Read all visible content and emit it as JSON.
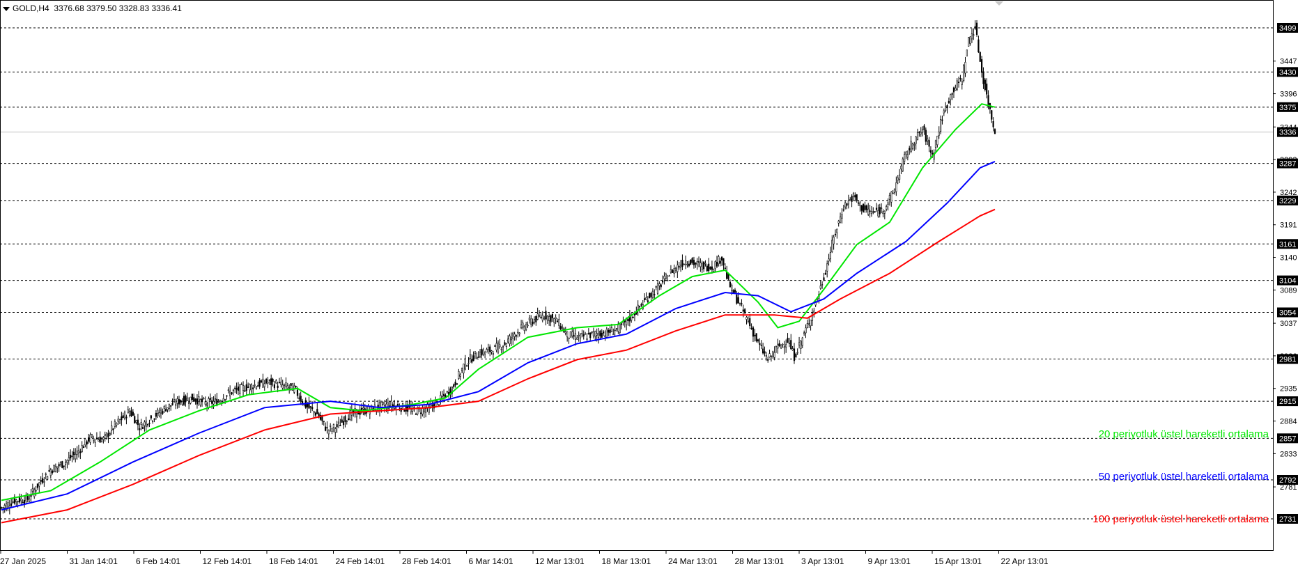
{
  "header": {
    "symbol": "GOLD,H4",
    "ohlc": "3376.68 3379.50 3328.83 3336.41"
  },
  "legend": {
    "ema20": "20 periyotluk üstel hareketli ortalama",
    "ema50": "50 periyotluk üstel hareketli ortalama",
    "ema100": "100 periyotluk üstel hareketli ortalama"
  },
  "colors": {
    "ema20": "#00e600",
    "ema50": "#0000ff",
    "ema100": "#ff0000",
    "candle": "#000000",
    "level_line": "#000000",
    "price_label_bg": "#000000"
  },
  "chart_data": {
    "type": "candlestick",
    "symbol": "GOLD",
    "timeframe": "H4",
    "ylim": [
      2720,
      3520
    ],
    "x_ticks": [
      "27 Jan 2025",
      "31 Jan 14:01",
      "6 Feb 14:01",
      "12 Feb 14:01",
      "18 Feb 14:01",
      "24 Feb 14:01",
      "28 Feb 14:01",
      "6 Mar 14:01",
      "12 Mar 13:01",
      "18 Mar 13:01",
      "24 Mar 13:01",
      "28 Mar 13:01",
      "3 Apr 13:01",
      "9 Apr 13:01",
      "15 Apr 13:01",
      "22 Apr 13:01"
    ],
    "y_ticks": [
      3447,
      3396,
      3344,
      3293,
      3242,
      3191,
      3140,
      3089,
      3037,
      2986,
      2935,
      2884,
      2833,
      2781
    ],
    "levels": [
      3499,
      3430,
      3375,
      3287,
      3229,
      3161,
      3104,
      3054,
      2981,
      2915,
      2857,
      2792,
      2731
    ],
    "current_price": 3336,
    "close_path": [
      [
        0,
        2748
      ],
      [
        8,
        2760
      ],
      [
        16,
        2762
      ],
      [
        24,
        2790
      ],
      [
        30,
        2808
      ],
      [
        38,
        2818
      ],
      [
        46,
        2835
      ],
      [
        54,
        2858
      ],
      [
        62,
        2855
      ],
      [
        70,
        2880
      ],
      [
        78,
        2900
      ],
      [
        84,
        2875
      ],
      [
        92,
        2890
      ],
      [
        100,
        2905
      ],
      [
        108,
        2915
      ],
      [
        116,
        2920
      ],
      [
        124,
        2912
      ],
      [
        132,
        2915
      ],
      [
        138,
        2928
      ],
      [
        146,
        2935
      ],
      [
        154,
        2940
      ],
      [
        162,
        2945
      ],
      [
        170,
        2940
      ],
      [
        178,
        2935
      ],
      [
        184,
        2910
      ],
      [
        192,
        2895
      ],
      [
        198,
        2870
      ],
      [
        204,
        2875
      ],
      [
        212,
        2895
      ],
      [
        220,
        2900
      ],
      [
        228,
        2905
      ],
      [
        236,
        2910
      ],
      [
        244,
        2905
      ],
      [
        252,
        2900
      ],
      [
        260,
        2905
      ],
      [
        266,
        2915
      ],
      [
        274,
        2935
      ],
      [
        282,
        2975
      ],
      [
        290,
        2990
      ],
      [
        298,
        2995
      ],
      [
        306,
        3005
      ],
      [
        314,
        3025
      ],
      [
        322,
        3040
      ],
      [
        330,
        3050
      ],
      [
        338,
        3040
      ],
      [
        344,
        3018
      ],
      [
        352,
        3015
      ],
      [
        360,
        3020
      ],
      [
        368,
        3022
      ],
      [
        376,
        3030
      ],
      [
        384,
        3050
      ],
      [
        392,
        3075
      ],
      [
        400,
        3095
      ],
      [
        408,
        3120
      ],
      [
        416,
        3135
      ],
      [
        424,
        3128
      ],
      [
        432,
        3125
      ],
      [
        438,
        3140
      ],
      [
        442,
        3100
      ],
      [
        448,
        3070
      ],
      [
        454,
        3040
      ],
      [
        460,
        3005
      ],
      [
        466,
        2980
      ],
      [
        472,
        3000
      ],
      [
        478,
        3010
      ],
      [
        482,
        2985
      ],
      [
        488,
        3020
      ],
      [
        494,
        3060
      ],
      [
        500,
        3110
      ],
      [
        506,
        3170
      ],
      [
        512,
        3220
      ],
      [
        518,
        3235
      ],
      [
        524,
        3215
      ],
      [
        530,
        3210
      ],
      [
        536,
        3215
      ],
      [
        542,
        3240
      ],
      [
        548,
        3290
      ],
      [
        554,
        3320
      ],
      [
        560,
        3340
      ],
      [
        566,
        3300
      ],
      [
        572,
        3360
      ],
      [
        578,
        3400
      ],
      [
        584,
        3420
      ],
      [
        588,
        3480
      ],
      [
        592,
        3500
      ],
      [
        596,
        3430
      ],
      [
        600,
        3380
      ],
      [
        604,
        3336
      ]
    ],
    "series": [
      {
        "name": "20 periyotluk üstel hareketli ortalama",
        "points": [
          [
            0,
            2760
          ],
          [
            30,
            2775
          ],
          [
            60,
            2820
          ],
          [
            90,
            2870
          ],
          [
            120,
            2900
          ],
          [
            150,
            2925
          ],
          [
            180,
            2935
          ],
          [
            200,
            2905
          ],
          [
            220,
            2900
          ],
          [
            250,
            2910
          ],
          [
            270,
            2920
          ],
          [
            290,
            2965
          ],
          [
            320,
            3015
          ],
          [
            350,
            3030
          ],
          [
            375,
            3035
          ],
          [
            400,
            3080
          ],
          [
            420,
            3110
          ],
          [
            440,
            3120
          ],
          [
            460,
            3070
          ],
          [
            472,
            3030
          ],
          [
            485,
            3040
          ],
          [
            500,
            3090
          ],
          [
            520,
            3160
          ],
          [
            540,
            3195
          ],
          [
            560,
            3280
          ],
          [
            580,
            3340
          ],
          [
            596,
            3380
          ],
          [
            604,
            3375
          ]
        ]
      },
      {
        "name": "50 periyotluk üstel hareketli ortalama",
        "points": [
          [
            0,
            2745
          ],
          [
            40,
            2770
          ],
          [
            80,
            2820
          ],
          [
            120,
            2865
          ],
          [
            160,
            2905
          ],
          [
            200,
            2915
          ],
          [
            230,
            2905
          ],
          [
            260,
            2910
          ],
          [
            290,
            2930
          ],
          [
            320,
            2975
          ],
          [
            350,
            3005
          ],
          [
            380,
            3020
          ],
          [
            410,
            3060
          ],
          [
            440,
            3085
          ],
          [
            460,
            3080
          ],
          [
            480,
            3055
          ],
          [
            500,
            3075
          ],
          [
            520,
            3115
          ],
          [
            550,
            3165
          ],
          [
            575,
            3225
          ],
          [
            595,
            3280
          ],
          [
            604,
            3290
          ]
        ]
      },
      {
        "name": "100 periyotluk üstel hareketli ortalama",
        "points": [
          [
            0,
            2725
          ],
          [
            40,
            2745
          ],
          [
            80,
            2785
          ],
          [
            120,
            2830
          ],
          [
            160,
            2870
          ],
          [
            200,
            2895
          ],
          [
            230,
            2900
          ],
          [
            260,
            2905
          ],
          [
            290,
            2915
          ],
          [
            320,
            2950
          ],
          [
            350,
            2980
          ],
          [
            380,
            2995
          ],
          [
            410,
            3025
          ],
          [
            440,
            3050
          ],
          [
            470,
            3050
          ],
          [
            490,
            3045
          ],
          [
            510,
            3075
          ],
          [
            540,
            3115
          ],
          [
            570,
            3165
          ],
          [
            595,
            3205
          ],
          [
            604,
            3215
          ]
        ]
      }
    ],
    "annotations": [
      "20 periyotluk üstel hareketli ortalama",
      "50 periyotluk üstel hareketli ortalama",
      "100 periyotluk üstel hareketli ortalama"
    ]
  }
}
